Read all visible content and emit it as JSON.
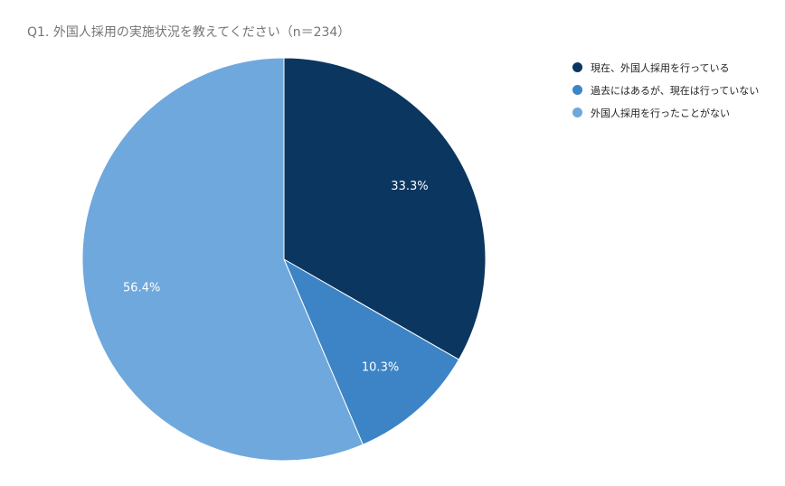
{
  "chart_data": {
    "type": "pie",
    "title": "Q1. 外国人採用の実施状況を教えてください（n＝234）",
    "legend_position": "right",
    "slices": [
      {
        "label": "現在、外国人採用を行っている",
        "value": 33.3,
        "display": "33.3%",
        "color": "#0b3660"
      },
      {
        "label": "過去にはあるが、現在は行っていない",
        "value": 10.3,
        "display": "10.3%",
        "color": "#3d84c6"
      },
      {
        "label": "外国人採用を行ったことがない",
        "value": 56.4,
        "display": "56.4%",
        "color": "#6fa8dc"
      }
    ]
  }
}
